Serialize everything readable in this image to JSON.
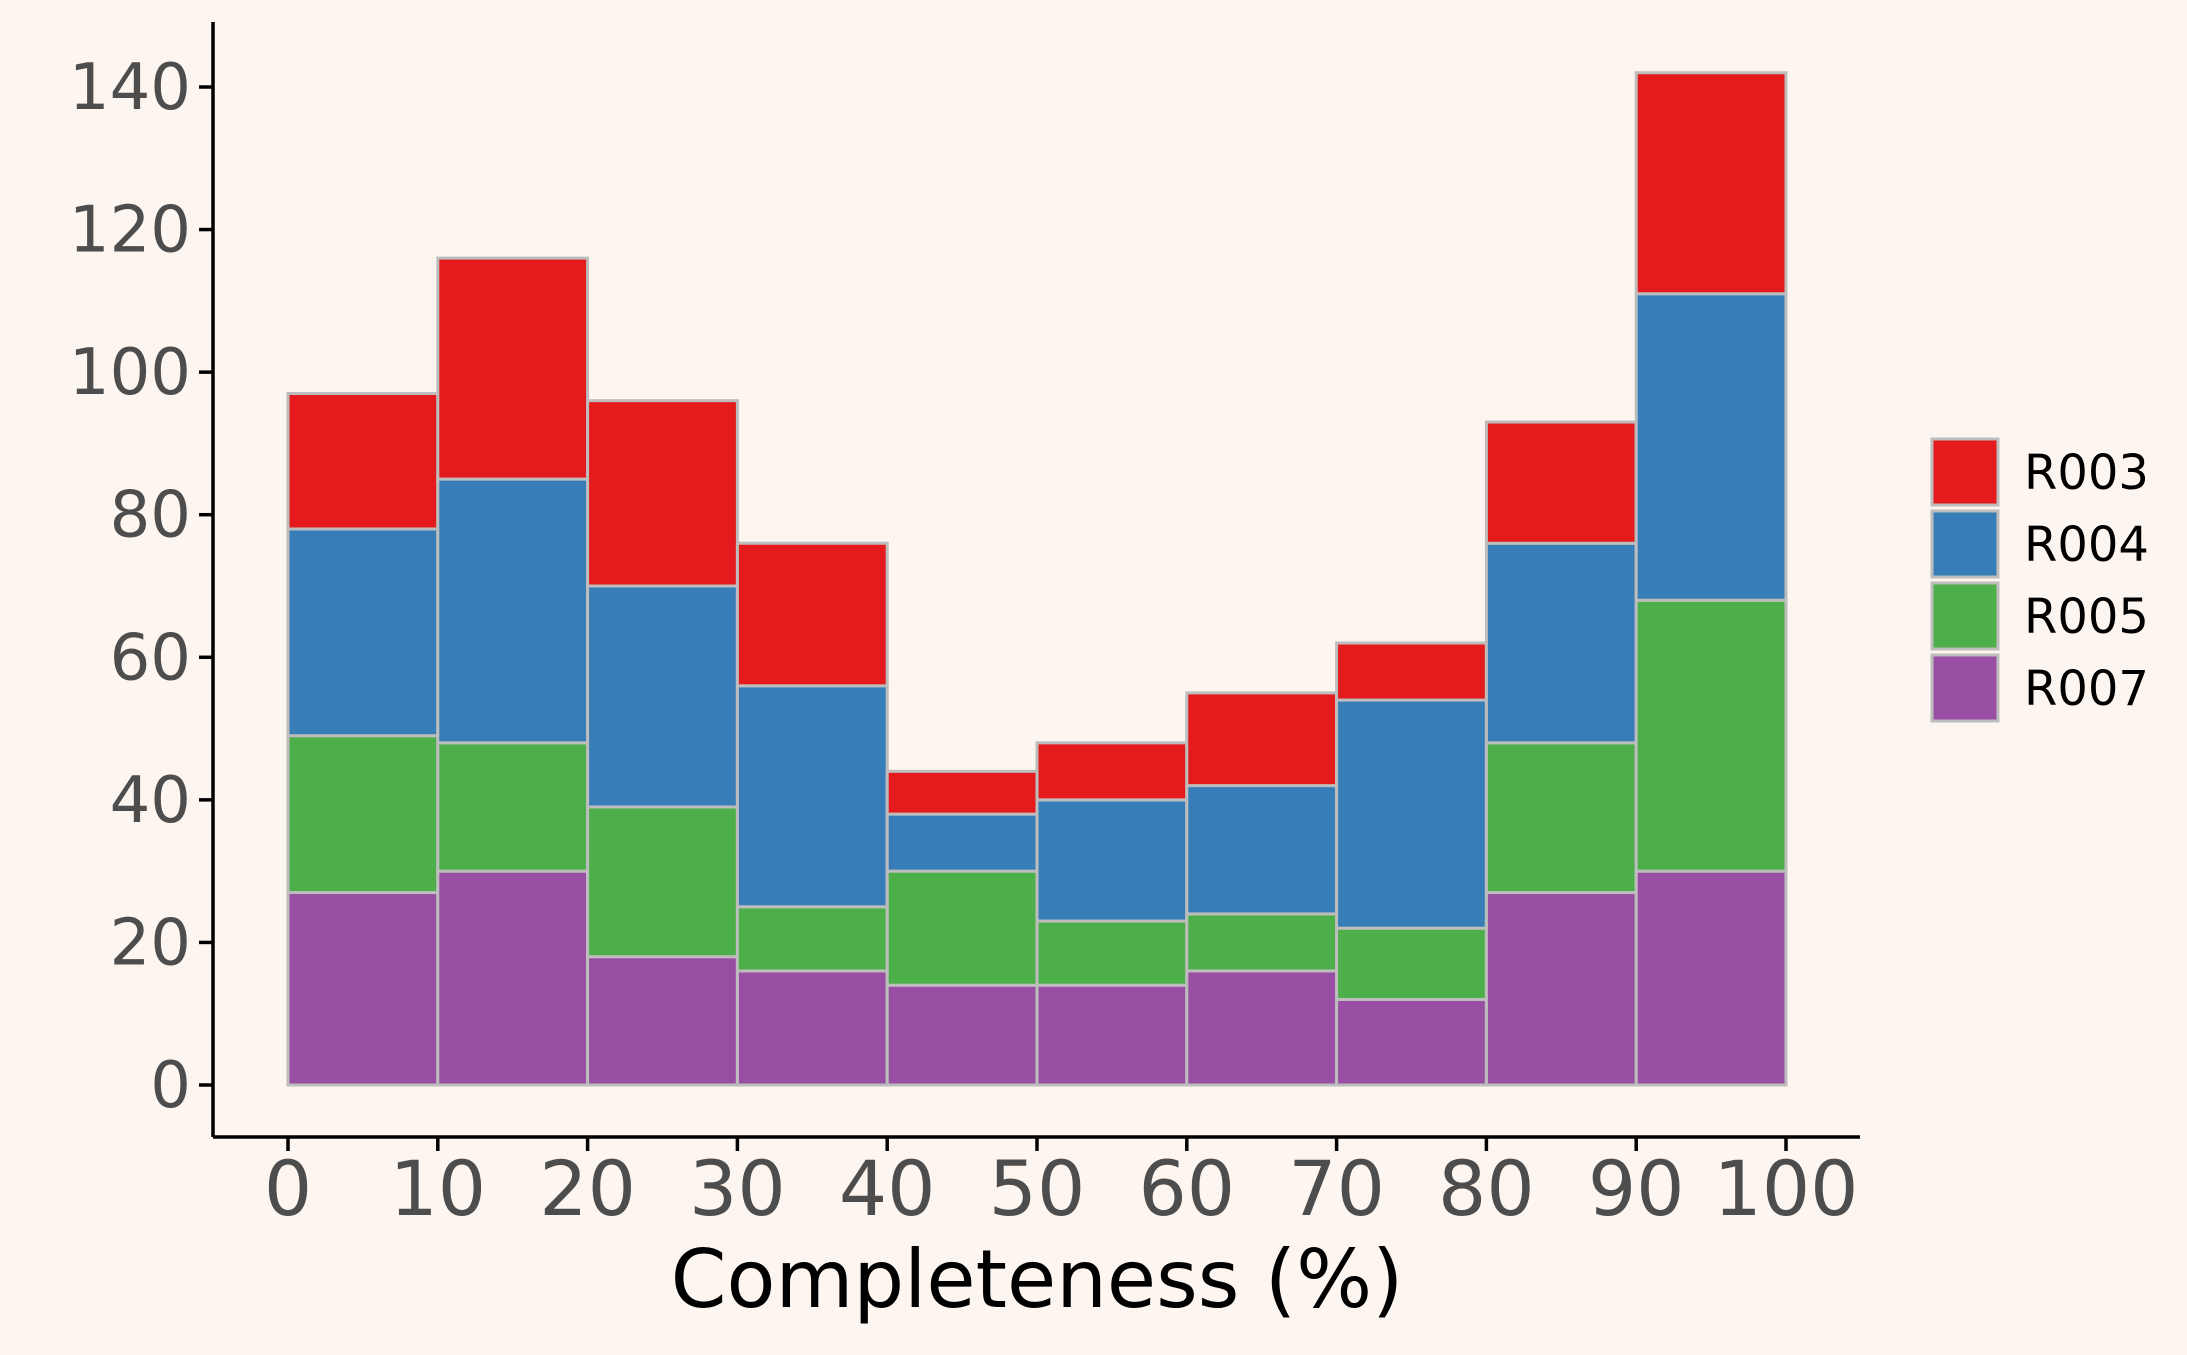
{
  "chart_data": {
    "type": "bar",
    "stacked": true,
    "histogram": true,
    "bin_edges": [
      0,
      10,
      20,
      30,
      40,
      50,
      60,
      70,
      80,
      90,
      100
    ],
    "x_ticks": [
      "0",
      "10",
      "20",
      "30",
      "40",
      "50",
      "60",
      "70",
      "80",
      "90",
      "100"
    ],
    "y_ticks": [
      "0",
      "20",
      "40",
      "60",
      "80",
      "100",
      "120",
      "140"
    ],
    "xlabel": "Completeness (%)",
    "ylabel": "",
    "title": "",
    "xlim": [
      0,
      100
    ],
    "ylim": [
      0,
      140
    ],
    "grid": false,
    "legend_position": "right",
    "legend_order": [
      "R003",
      "R004",
      "R005",
      "R007"
    ],
    "series": [
      {
        "name": "R007",
        "color": "#984ea3",
        "values": [
          27,
          30,
          18,
          16,
          14,
          14,
          16,
          12,
          27,
          30
        ]
      },
      {
        "name": "R005",
        "color": "#4daf4a",
        "values": [
          22,
          18,
          21,
          9,
          16,
          9,
          8,
          10,
          21,
          38
        ]
      },
      {
        "name": "R004",
        "color": "#377eb8",
        "values": [
          29,
          37,
          31,
          31,
          8,
          17,
          18,
          32,
          28,
          43
        ]
      },
      {
        "name": "R003",
        "color": "#e41a1c",
        "values": [
          19,
          31,
          26,
          20,
          6,
          8,
          13,
          8,
          17,
          31
        ]
      }
    ],
    "bar_outline_color": "#bdbdbd",
    "axis_color": "#000000",
    "background_color": "#fdf6f0"
  }
}
